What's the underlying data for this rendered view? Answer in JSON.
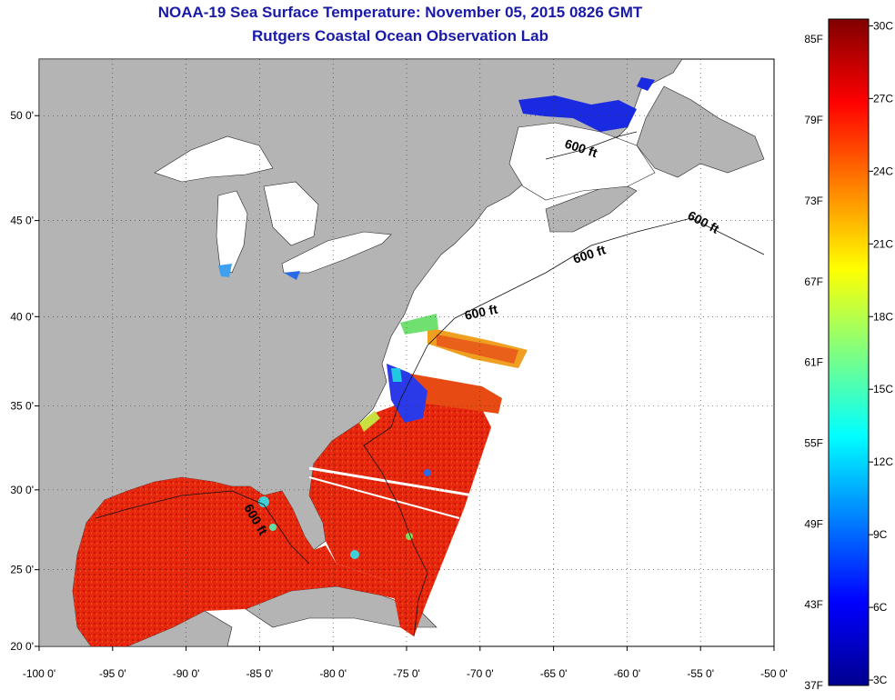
{
  "title_line1": "NOAA-19 Sea Surface Temperature:  November 05, 2015 0826 GMT",
  "title_line2": "Rutgers Coastal Ocean Observation Lab",
  "map": {
    "lon_range": [
      -100,
      -50
    ],
    "lat_range": [
      20,
      52.5
    ],
    "lon_ticks": [
      "-100 0'",
      "-95 0'",
      "-90 0'",
      "-85 0'",
      "-80 0'",
      "-75 0'",
      "-70 0'",
      "-65 0'",
      "-60 0'",
      "-55 0'",
      "-50 0'"
    ],
    "lat_ticks": [
      "20 0'",
      "25 0'",
      "30 0'",
      "35 0'",
      "40 0'",
      "45 0'",
      "50 0'"
    ],
    "contour_label": "600 ft",
    "colors": {
      "land": "#b4b4b4",
      "ocean_nodata": "#ffffff",
      "gulf_warm": "#ee2a10",
      "deep_red": "#d01808",
      "cold": "#1a2ae0"
    }
  },
  "colorbar": {
    "gradient_stops": [
      "#00008f",
      "#0000ff",
      "#0080ff",
      "#00ffff",
      "#80ff80",
      "#ffff00",
      "#ff8000",
      "#ff0000",
      "#800000"
    ],
    "fahrenheit_labels": [
      "85F",
      "79F",
      "73F",
      "67F",
      "61F",
      "55F",
      "49F",
      "43F",
      "37F"
    ],
    "celsius_labels": [
      "30C",
      "27C",
      "24C",
      "21C",
      "18C",
      "15C",
      "12C",
      "9C",
      "6C",
      "3C"
    ]
  }
}
